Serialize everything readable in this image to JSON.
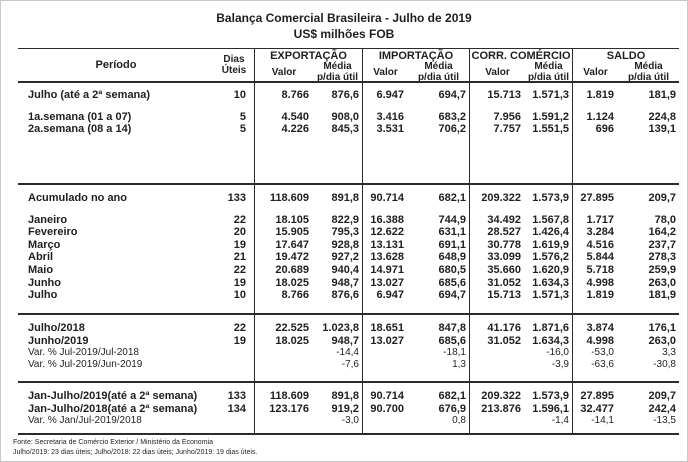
{
  "title": "Balança Comercial Brasileira - Julho de 2019",
  "subtitle": "US$ milhões FOB",
  "table": {
    "header": {
      "periodo": "Período",
      "dias_uteis": "Dias\nÚteis",
      "valor_label": "Valor",
      "media_label": "Média\np/dia útil",
      "groups": [
        {
          "label": "EXPORTAÇÃO"
        },
        {
          "label": "IMPORTAÇÃO"
        },
        {
          "label": "CORR. COMÉRCIO"
        },
        {
          "label": "SALDO"
        }
      ]
    },
    "sections": [
      {
        "rows": [
          {
            "spacer": 6
          },
          {
            "label": "Julho (até a 2ª semana)",
            "cells": [
              "10",
              "8.766",
              "876,6",
              "6.947",
              "694,7",
              "15.713",
              "1.571,3",
              "1.819",
              "181,9"
            ]
          },
          {
            "spacer": 9
          },
          {
            "label": "1a.semana (01 a 07)",
            "cells": [
              "5",
              "4.540",
              "908,0",
              "3.416",
              "683,2",
              "7.956",
              "1.591,2",
              "1.124",
              "224,8"
            ]
          },
          {
            "label": "2a.semana (08 a 14)",
            "cells": [
              "5",
              "4.226",
              "845,3",
              "3.531",
              "706,2",
              "7.757",
              "1.551,5",
              "696",
              "139,1"
            ]
          }
        ]
      },
      {
        "rows": [
          {
            "spacer": 7
          },
          {
            "label": "Acumulado no ano",
            "cells": [
              "133",
              "118.609",
              "891,8",
              "90.714",
              "682,1",
              "209.322",
              "1.573,9",
              "27.895",
              "209,7"
            ]
          },
          {
            "spacer": 9
          },
          {
            "label": "Janeiro",
            "cells": [
              "22",
              "18.105",
              "822,9",
              "16.388",
              "744,9",
              "34.492",
              "1.567,8",
              "1.717",
              "78,0"
            ]
          },
          {
            "label": "Fevereiro",
            "cells": [
              "20",
              "15.905",
              "795,3",
              "12.622",
              "631,1",
              "28.527",
              "1.426,4",
              "3.284",
              "164,2"
            ]
          },
          {
            "label": "Março",
            "cells": [
              "19",
              "17.647",
              "928,8",
              "13.131",
              "691,1",
              "30.778",
              "1.619,9",
              "4.516",
              "237,7"
            ]
          },
          {
            "label": "Abril",
            "cells": [
              "21",
              "19.472",
              "927,2",
              "13.628",
              "648,9",
              "33.099",
              "1.576,2",
              "5.844",
              "278,3"
            ]
          },
          {
            "label": "Maio",
            "cells": [
              "22",
              "20.689",
              "940,4",
              "14.971",
              "680,5",
              "35.660",
              "1.620,9",
              "5.718",
              "259,9"
            ]
          },
          {
            "label": "Junho",
            "cells": [
              "19",
              "18.025",
              "948,7",
              "13.027",
              "685,6",
              "31.052",
              "1.634,3",
              "4.998",
              "263,0"
            ]
          },
          {
            "label": "Julho",
            "cells": [
              "10",
              "8.766",
              "876,6",
              "6.947",
              "694,7",
              "15.713",
              "1.571,3",
              "1.819",
              "181,9"
            ]
          }
        ]
      },
      {
        "rows": [
          {
            "spacer": 7
          },
          {
            "label": "Julho/2018",
            "cells": [
              "22",
              "22.525",
              "1.023,8",
              "18.651",
              "847,8",
              "41.176",
              "1.871,6",
              "3.874",
              "176,1"
            ]
          },
          {
            "label": "Junho/2019",
            "cells": [
              "19",
              "18.025",
              "948,7",
              "13.027",
              "685,6",
              "31.052",
              "1.634,3",
              "4.998",
              "263,0"
            ]
          },
          {
            "label": "Var. % Jul-2019/Jul-2018",
            "style": "normal",
            "cells": [
              "",
              "",
              "-14,4",
              "",
              "-18,1",
              "",
              "-16,0",
              "-53,0",
              "3,3"
            ]
          },
          {
            "label": "Var. % Jul-2019/Jun-2019",
            "style": "normal",
            "cells": [
              "",
              "",
              "-7,6",
              "",
              "1,3",
              "",
              "-3,9",
              "-63,6",
              "-30,8"
            ]
          }
        ]
      },
      {
        "rows": [
          {
            "spacer": 7
          },
          {
            "label": "Jan-Julho/2019(até a 2ª semana)",
            "cells": [
              "133",
              "118.609",
              "891,8",
              "90.714",
              "682,1",
              "209.322",
              "1.573,9",
              "27.895",
              "209,7"
            ]
          },
          {
            "label": "Jan-Julho/2018(até a 2ª semana)",
            "cells": [
              "134",
              "123.176",
              "919,2",
              "90.700",
              "676,9",
              "213.876",
              "1.596,1",
              "32.477",
              "242,4"
            ]
          },
          {
            "label": "Var. % Jan/Jul-2019/2018",
            "style": "normal",
            "cells": [
              "",
              "",
              "-3,0",
              "",
              "0,8",
              "",
              "-1,4",
              "-14,1",
              "-13,5"
            ]
          }
        ]
      }
    ]
  },
  "footer": {
    "source": "Fonte: Secretaria de Comércio Exterior / Ministério da Economia",
    "note": "Julho/2019: 23 dias úteis; Julho/2018: 22 dias úteis; Junho/2019: 19 dias úteis."
  }
}
